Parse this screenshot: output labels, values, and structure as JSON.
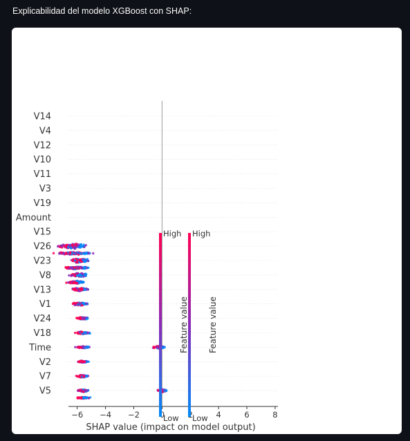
{
  "page": {
    "caption": "Explicabilidad del modelo XGBoost con SHAP:"
  },
  "chart_data": {
    "type": "beeswarm",
    "xlabel": "SHAP value (impact on model output)",
    "xticks": [
      -6,
      -4,
      -2,
      0,
      2,
      4,
      6,
      8
    ],
    "xlim": [
      -7.6,
      8.2
    ],
    "features": [
      "V14",
      "V4",
      "V12",
      "V10",
      "V11",
      "V3",
      "V19",
      "Amount",
      "V15",
      "V26",
      "V23",
      "V8",
      "V13",
      "V1",
      "V24",
      "V18",
      "Time",
      "V2",
      "V7",
      "V5"
    ],
    "swarms": [
      {
        "row": 9.0,
        "center": -6.3,
        "spread": 1.2,
        "height": 10
      },
      {
        "row": 9.5,
        "center": -6.2,
        "spread": 1.7,
        "height": 5
      },
      {
        "row": 10.0,
        "center": -5.9,
        "spread": 0.9,
        "height": 9
      },
      {
        "row": 10.5,
        "center": -6.1,
        "spread": 1.2,
        "height": 5
      },
      {
        "row": 11.0,
        "center": -5.9,
        "spread": 0.8,
        "height": 7
      },
      {
        "row": 11.5,
        "center": -6.1,
        "spread": 0.8,
        "height": 5
      },
      {
        "row": 12.0,
        "center": -5.8,
        "spread": 0.7,
        "height": 7
      },
      {
        "row": 13.0,
        "center": -5.8,
        "spread": 0.7,
        "height": 6
      },
      {
        "row": 14.0,
        "center": -5.6,
        "spread": 0.6,
        "height": 5
      },
      {
        "row": 15.0,
        "center": -5.6,
        "spread": 0.6,
        "height": 5
      },
      {
        "row": 16.0,
        "center": -5.6,
        "spread": 0.6,
        "height": 4
      },
      {
        "row": 16.0,
        "center": -0.2,
        "spread": 0.5,
        "height": 6
      },
      {
        "row": 17.0,
        "center": -5.6,
        "spread": 0.5,
        "height": 4
      },
      {
        "row": 18.0,
        "center": -5.6,
        "spread": 0.5,
        "height": 5
      },
      {
        "row": 19.0,
        "center": -5.6,
        "spread": 0.5,
        "height": 5
      },
      {
        "row": 19.0,
        "center": 0.0,
        "spread": 0.4,
        "height": 6
      },
      {
        "row": 19.5,
        "center": -5.6,
        "spread": 0.6,
        "height": 3
      }
    ],
    "colorbars": [
      {
        "high_label": "High",
        "low_label": "Low",
        "axis_label": "Feature value"
      },
      {
        "high_label": "High",
        "low_label": "Low",
        "axis_label": "Feature value"
      }
    ],
    "colors": {
      "high": "#ff0052",
      "mid": "#8a2ab8",
      "low": "#008bfb",
      "axis": "#333333",
      "zero_line": "#999999",
      "grid": "#cccccc"
    },
    "legend_position": "right"
  }
}
